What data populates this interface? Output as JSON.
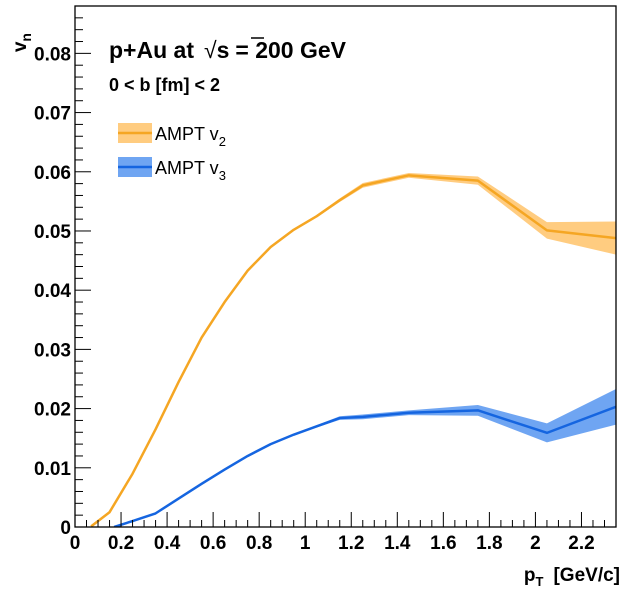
{
  "chart_data": {
    "type": "line",
    "title": "",
    "xlabel": "p",
    "xlabel_sub": "T",
    "xlabel_unit": "[GeV/c]",
    "ylabel": "v",
    "ylabel_sub": "n",
    "xlim": [
      0,
      2.35
    ],
    "ylim": [
      0,
      0.088
    ],
    "x_ticks": [
      0,
      0.2,
      0.4,
      0.6,
      0.8,
      1,
      1.2,
      1.4,
      1.6,
      1.8,
      2,
      2.2
    ],
    "x_tick_labels": [
      "0",
      "0.2",
      "0.4",
      "0.6",
      "0.8",
      "1",
      "1.2",
      "1.4",
      "1.6",
      "1.8",
      "2",
      "2.2"
    ],
    "y_ticks": [
      0,
      0.01,
      0.02,
      0.03,
      0.04,
      0.05,
      0.06,
      0.07,
      0.08
    ],
    "y_tick_labels": [
      "0",
      "0.01",
      "0.02",
      "0.03",
      "0.04",
      "0.05",
      "0.06",
      "0.07",
      "0.08"
    ],
    "grid": false,
    "legend_position": "upper-left",
    "annotations": {
      "system_prefix": "p+Au at",
      "sqrt_symbol": "√",
      "sqrt_arg": "s",
      "energy": "= 200 GeV",
      "centrality": "0 < b [fm] < 2"
    },
    "series": [
      {
        "name": "AMPT v",
        "name_sub": "2",
        "color": "#f5a623",
        "band_color": "#ffcc80",
        "x": [
          0.07,
          0.15,
          0.25,
          0.35,
          0.45,
          0.55,
          0.65,
          0.75,
          0.85,
          0.95,
          1.05,
          1.15,
          1.25,
          1.45,
          1.75,
          2.05,
          2.35
        ],
        "y": [
          0.0001,
          0.0025,
          0.009,
          0.0165,
          0.0245,
          0.032,
          0.038,
          0.0433,
          0.0473,
          0.0502,
          0.0525,
          0.0552,
          0.0577,
          0.0594,
          0.0585,
          0.0501,
          0.0488
        ],
        "y_err": [
          0.0,
          0.0,
          0.0,
          0.0,
          0.0,
          0.0,
          0.0,
          0.0,
          0.0,
          0.0002,
          0.0002,
          0.0003,
          0.0004,
          0.0004,
          0.0007,
          0.0014,
          0.0028
        ]
      },
      {
        "name": "AMPT v",
        "name_sub": "3",
        "color": "#1565e0",
        "band_color": "#6fa5f2",
        "x": [
          0.17,
          0.25,
          0.35,
          0.45,
          0.55,
          0.65,
          0.75,
          0.85,
          0.95,
          1.05,
          1.15,
          1.25,
          1.45,
          1.75,
          2.05,
          2.35
        ],
        "y": [
          0.0,
          0.001,
          0.0023,
          0.0048,
          0.0073,
          0.0097,
          0.012,
          0.014,
          0.0156,
          0.017,
          0.0184,
          0.0186,
          0.0193,
          0.0197,
          0.0159,
          0.0203
        ],
        "y_err": [
          0.0,
          0.0,
          0.0,
          0.0,
          0.0,
          0.0,
          0.0,
          0.0001,
          0.0001,
          0.0002,
          0.0003,
          0.0004,
          0.0004,
          0.0009,
          0.0016,
          0.003
        ]
      }
    ]
  }
}
